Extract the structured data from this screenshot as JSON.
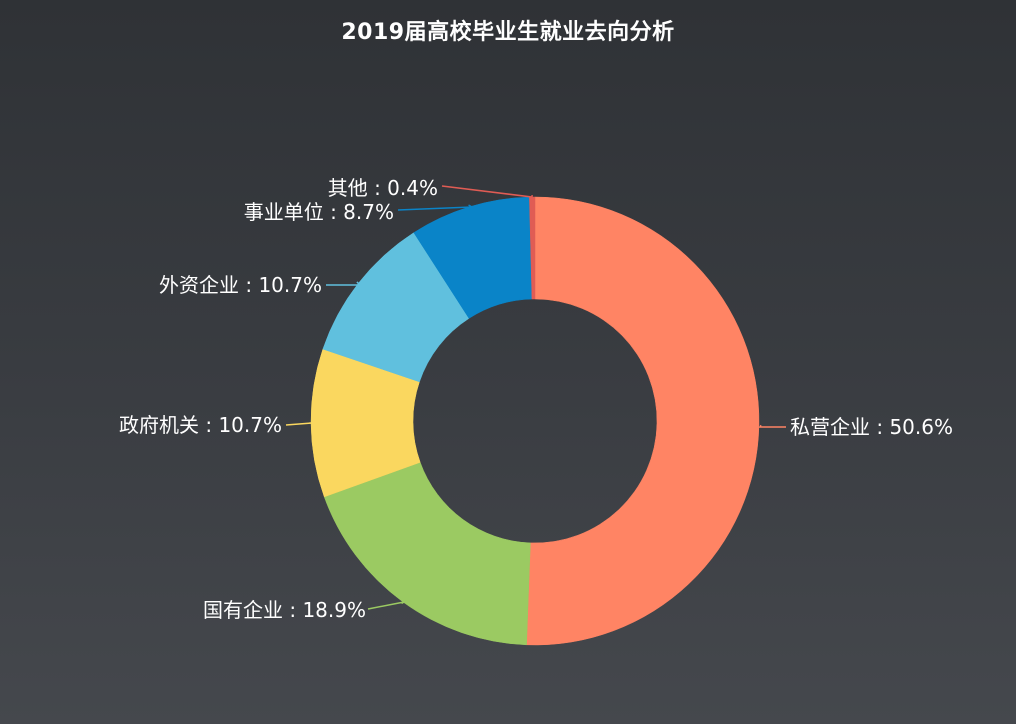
{
  "chart_data": {
    "type": "pie",
    "title": "2019届高校毕业生就业去向分析",
    "slices": [
      {
        "name": "私营企业",
        "value": 50.6,
        "label": "私营企业 : 50.6%",
        "color": "#ff8464"
      },
      {
        "name": "国有企业",
        "value": 18.9,
        "label": "国有企业 : 18.9%",
        "color": "#9bca62"
      },
      {
        "name": "政府机关",
        "value": 10.7,
        "label": "政府机关 : 10.7%",
        "color": "#fad75f"
      },
      {
        "name": "外资企业",
        "value": 10.7,
        "label": "外资企业 : 10.7%",
        "color": "#60c0de"
      },
      {
        "name": "事业单位",
        "value": 8.7,
        "label": "事业单位 : 8.7%",
        "color": "#0a84c8"
      },
      {
        "name": "其他",
        "value": 0.4,
        "label": "其他 : 0.4%",
        "color": "#e05c54"
      }
    ],
    "donut": true,
    "legend": "none",
    "label_color": "#ffffff"
  }
}
